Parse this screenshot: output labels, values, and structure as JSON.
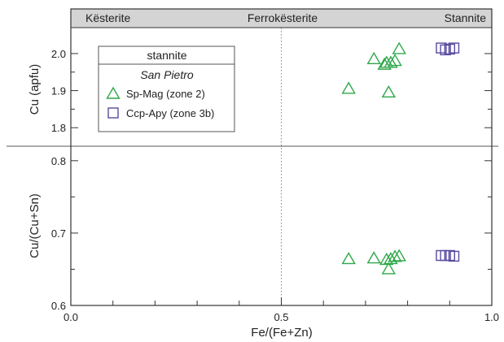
{
  "chart_data": {
    "type": "scatter",
    "x": {
      "label": "Fe/(Fe+Zn)",
      "range": [
        0.0,
        1.0
      ],
      "ticks": [
        0.0,
        0.5,
        1.0
      ],
      "tick_labels": [
        "0.0",
        "0.5",
        "1.0"
      ]
    },
    "header_labels": [
      "Kësterite",
      "Ferrokësterite",
      "Stannite"
    ],
    "vline_x": 0.5,
    "panels": [
      {
        "id": "cu",
        "y_label": "Cu (apfu)",
        "y_range": [
          1.75,
          2.07
        ],
        "y_ticks": [
          1.8,
          1.9,
          2.0
        ],
        "y_tick_labels": [
          "1.8",
          "1.9",
          "2.0"
        ],
        "series": [
          {
            "name": "Sp-Mag (zone 2)",
            "marker": "triangle",
            "color": "#2ea84a",
            "points": [
              [
                0.66,
                1.905
              ],
              [
                0.72,
                1.985
              ],
              [
                0.745,
                1.97
              ],
              [
                0.75,
                1.975
              ],
              [
                0.755,
                1.895
              ],
              [
                0.76,
                1.975
              ],
              [
                0.77,
                1.98
              ],
              [
                0.78,
                2.012
              ]
            ]
          },
          {
            "name": "Ccp-Apy (zone 3b)",
            "marker": "square",
            "color": "#5a4aa0",
            "points": [
              [
                0.88,
                2.015
              ],
              [
                0.89,
                2.01
              ],
              [
                0.9,
                2.012
              ],
              [
                0.91,
                2.015
              ]
            ]
          }
        ]
      },
      {
        "id": "cusn",
        "y_label": "Cu/(Cu+Sn)",
        "y_range": [
          0.6,
          0.82
        ],
        "y_ticks": [
          0.6,
          0.7,
          0.8
        ],
        "y_tick_labels": [
          "0.6",
          "0.7",
          "0.8"
        ],
        "series": [
          {
            "name": "Sp-Mag (zone 2)",
            "marker": "triangle",
            "color": "#2ea84a",
            "points": [
              [
                0.66,
                0.664
              ],
              [
                0.72,
                0.665
              ],
              [
                0.75,
                0.663
              ],
              [
                0.755,
                0.65
              ],
              [
                0.76,
                0.664
              ],
              [
                0.77,
                0.667
              ],
              [
                0.78,
                0.668
              ]
            ]
          },
          {
            "name": "Ccp-Apy (zone 3b)",
            "marker": "square",
            "color": "#5a4aa0",
            "points": [
              [
                0.88,
                0.669
              ],
              [
                0.89,
                0.669
              ],
              [
                0.9,
                0.669
              ],
              [
                0.91,
                0.668
              ]
            ]
          }
        ]
      }
    ],
    "legend": {
      "title": "stannite",
      "subtitle": "San Pietro",
      "placement": "top-left",
      "entries": [
        "Sp-Mag (zone 2)",
        "Ccp-Apy (zone 3b)"
      ]
    }
  }
}
